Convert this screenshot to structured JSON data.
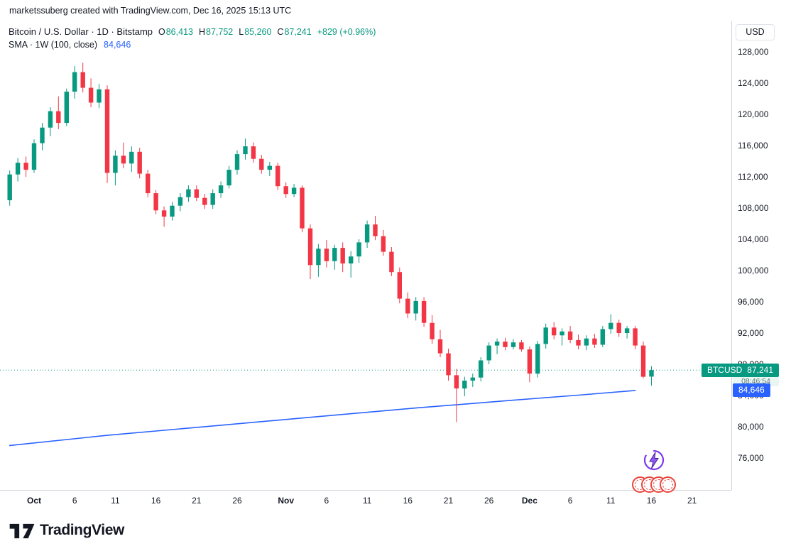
{
  "meta": {
    "attribution": "marketssuberg created with TradingView.com, Dec 16, 2025 15:13 UTC"
  },
  "legend": {
    "title": "Bitcoin / U.S. Dollar · 1D · Bitstamp",
    "ohlc": [
      {
        "label": "O",
        "value": "86,413"
      },
      {
        "label": "H",
        "value": "87,752"
      },
      {
        "label": "L",
        "value": "85,260"
      },
      {
        "label": "C",
        "value": "87,241"
      }
    ],
    "change": "+829 (+0.96%)",
    "indicator": {
      "name": "SMA · 1W (100, close)",
      "value": "84,646"
    }
  },
  "axis": {
    "currency_label": "USD",
    "price_ticks": [
      128000,
      124000,
      120000,
      116000,
      112000,
      108000,
      104000,
      100000,
      96000,
      92000,
      88000,
      84000,
      80000,
      76000
    ],
    "time_ticks": [
      {
        "label": "Oct",
        "i": 3,
        "bold": true
      },
      {
        "label": "6",
        "i": 8
      },
      {
        "label": "11",
        "i": 13
      },
      {
        "label": "16",
        "i": 18
      },
      {
        "label": "21",
        "i": 23
      },
      {
        "label": "26",
        "i": 28
      },
      {
        "label": "Nov",
        "i": 34,
        "bold": true
      },
      {
        "label": "6",
        "i": 39
      },
      {
        "label": "11",
        "i": 44
      },
      {
        "label": "16",
        "i": 49
      },
      {
        "label": "21",
        "i": 54
      },
      {
        "label": "26",
        "i": 59
      },
      {
        "label": "Dec",
        "i": 64,
        "bold": true
      },
      {
        "label": "6",
        "i": 69
      },
      {
        "label": "11",
        "i": 74
      },
      {
        "label": "16",
        "i": 79
      },
      {
        "label": "21",
        "i": 84
      }
    ]
  },
  "badges": {
    "symbol": "BTCUSD",
    "price": "87,241",
    "countdown": "08:46:54",
    "sma_value": "84,646"
  },
  "footer": {
    "brand": "TradingView"
  },
  "colors": {
    "up": "#089981",
    "down": "#f23645",
    "sma": "#2962ff",
    "text": "#131722",
    "muted": "#787b86",
    "axis_line": "#d1d4dc"
  },
  "chart_data": {
    "type": "candlestick",
    "title": "Bitcoin / U.S. Dollar",
    "symbol": "BTCUSD",
    "exchange": "Bitstamp",
    "interval": "1D",
    "currency": "USD",
    "ylim": [
      72000,
      131500
    ],
    "y_tick_step": 4000,
    "grid": false,
    "legend_position": "top-left",
    "current_price": 87241,
    "last_change": {
      "abs": 829,
      "pct": 0.96
    },
    "candles": [
      [
        "Sep 28",
        109000,
        112800,
        108300,
        112300
      ],
      [
        "Sep 29",
        112300,
        114400,
        111400,
        113800
      ],
      [
        "Sep 30",
        113800,
        114600,
        112000,
        112900
      ],
      [
        "Oct 1",
        112900,
        116800,
        112500,
        116300
      ],
      [
        "Oct 2",
        116300,
        118900,
        115400,
        118300
      ],
      [
        "Oct 3",
        118300,
        120900,
        117200,
        120400
      ],
      [
        "Oct 4",
        120400,
        122300,
        118100,
        118900
      ],
      [
        "Oct 5",
        118900,
        123300,
        118500,
        122900
      ],
      [
        "Oct 6",
        122900,
        126200,
        122000,
        125400
      ],
      [
        "Oct 7",
        125400,
        126600,
        122800,
        123400
      ],
      [
        "Oct 8",
        123400,
        124600,
        120900,
        121500
      ],
      [
        "Oct 9",
        121500,
        123900,
        120800,
        123200
      ],
      [
        "Oct 10",
        123200,
        123700,
        111200,
        112500
      ],
      [
        "Oct 11",
        112500,
        115400,
        110900,
        114700
      ],
      [
        "Oct 12",
        114700,
        116400,
        113100,
        113700
      ],
      [
        "Oct 13",
        113700,
        115900,
        112600,
        115200
      ],
      [
        "Oct 14",
        115200,
        115700,
        111800,
        112400
      ],
      [
        "Oct 15",
        112400,
        112900,
        109400,
        109900
      ],
      [
        "Oct 16",
        109900,
        110300,
        107200,
        107700
      ],
      [
        "Oct 17",
        107700,
        108200,
        105600,
        106900
      ],
      [
        "Oct 18",
        106900,
        108800,
        106400,
        108300
      ],
      [
        "Oct 19",
        108300,
        109900,
        107600,
        109400
      ],
      [
        "Oct 20",
        109400,
        110900,
        108800,
        110400
      ],
      [
        "Oct 21",
        110400,
        110900,
        108900,
        109300
      ],
      [
        "Oct 22",
        109300,
        109800,
        107900,
        108400
      ],
      [
        "Oct 23",
        108400,
        110400,
        107900,
        109900
      ],
      [
        "Oct 24",
        109900,
        111400,
        109300,
        110900
      ],
      [
        "Oct 25",
        110900,
        113400,
        110500,
        112900
      ],
      [
        "Oct 26",
        112900,
        115400,
        112300,
        114900
      ],
      [
        "Oct 27",
        114900,
        116900,
        114200,
        115900
      ],
      [
        "Oct 28",
        115900,
        116400,
        113800,
        114300
      ],
      [
        "Oct 29",
        114300,
        114800,
        112400,
        112900
      ],
      [
        "Oct 30",
        112900,
        113900,
        112100,
        113400
      ],
      [
        "Oct 31",
        113400,
        113800,
        110300,
        110800
      ],
      [
        "Nov 1",
        110800,
        111300,
        109300,
        109800
      ],
      [
        "Nov 2",
        109800,
        111100,
        109400,
        110600
      ],
      [
        "Nov 3",
        110600,
        110900,
        104900,
        105400
      ],
      [
        "Nov 4",
        105400,
        105900,
        98900,
        100700
      ],
      [
        "Nov 5",
        100700,
        103400,
        99200,
        102800
      ],
      [
        "Nov 6",
        102800,
        103900,
        100400,
        101200
      ],
      [
        "Nov 7",
        101200,
        103300,
        100100,
        102900
      ],
      [
        "Nov 8",
        102900,
        103600,
        99800,
        100900
      ],
      [
        "Nov 9",
        100900,
        102500,
        99100,
        101800
      ],
      [
        "Nov 10",
        101800,
        104000,
        101000,
        103600
      ],
      [
        "Nov 11",
        103600,
        106400,
        102900,
        105900
      ],
      [
        "Nov 12",
        105900,
        107000,
        103900,
        104400
      ],
      [
        "Nov 13",
        104400,
        105200,
        101900,
        102400
      ],
      [
        "Nov 14",
        102400,
        103000,
        99300,
        99800
      ],
      [
        "Nov 15",
        99800,
        100400,
        95800,
        96400
      ],
      [
        "Nov 16",
        96400,
        97200,
        93900,
        94500
      ],
      [
        "Nov 17",
        94500,
        96600,
        93600,
        96100
      ],
      [
        "Nov 18",
        96100,
        96600,
        92800,
        93300
      ],
      [
        "Nov 19",
        93300,
        94300,
        90600,
        91200
      ],
      [
        "Nov 20",
        91200,
        92400,
        88900,
        89400
      ],
      [
        "Nov 21",
        89400,
        90000,
        85900,
        86600
      ],
      [
        "Nov 22",
        86600,
        87400,
        80600,
        84900
      ],
      [
        "Nov 23",
        84900,
        86400,
        83900,
        85900
      ],
      [
        "Nov 24",
        85900,
        86800,
        85100,
        86300
      ],
      [
        "Nov 25",
        86300,
        88900,
        85800,
        88500
      ],
      [
        "Nov 26",
        88500,
        90800,
        88000,
        90400
      ],
      [
        "Nov 27",
        90400,
        91300,
        89300,
        90900
      ],
      [
        "Nov 28",
        90900,
        91400,
        89800,
        90200
      ],
      [
        "Nov 29",
        90200,
        91200,
        89900,
        90800
      ],
      [
        "Nov 30",
        90800,
        91100,
        89600,
        89900
      ],
      [
        "Dec 1",
        89900,
        90300,
        85700,
        86800
      ],
      [
        "Dec 2",
        86800,
        91000,
        86300,
        90600
      ],
      [
        "Dec 3",
        90600,
        93200,
        90000,
        92700
      ],
      [
        "Dec 4",
        92700,
        93400,
        91200,
        91700
      ],
      [
        "Dec 5",
        91700,
        92600,
        90400,
        92200
      ],
      [
        "Dec 6",
        92200,
        92900,
        90700,
        91100
      ],
      [
        "Dec 7",
        91100,
        91800,
        89900,
        90400
      ],
      [
        "Dec 8",
        90400,
        91700,
        89800,
        91300
      ],
      [
        "Dec 9",
        91300,
        91900,
        90100,
        90500
      ],
      [
        "Dec 10",
        90500,
        92900,
        90200,
        92500
      ],
      [
        "Dec 11",
        92500,
        94400,
        91900,
        93300
      ],
      [
        "Dec 12",
        93300,
        93700,
        91500,
        92000
      ],
      [
        "Dec 13",
        92000,
        92900,
        91300,
        92600
      ],
      [
        "Dec 14",
        92600,
        92900,
        89900,
        90400
      ],
      [
        "Dec 15",
        90400,
        90900,
        86200,
        86400
      ],
      [
        "Dec 16",
        86413,
        87752,
        85260,
        87241
      ]
    ],
    "sma": {
      "name": "SMA 1W (100, close)",
      "period": 100,
      "end_value": 84646,
      "color": "#2962ff",
      "polyline": [
        {
          "i": 0,
          "v": 77600
        },
        {
          "i": 12,
          "v": 78900
        },
        {
          "i": 25,
          "v": 80100
        },
        {
          "i": 38,
          "v": 81300
        },
        {
          "i": 50,
          "v": 82400
        },
        {
          "i": 62,
          "v": 83400
        },
        {
          "i": 70,
          "v": 84050
        },
        {
          "i": 77,
          "v": 84646
        }
      ]
    }
  }
}
